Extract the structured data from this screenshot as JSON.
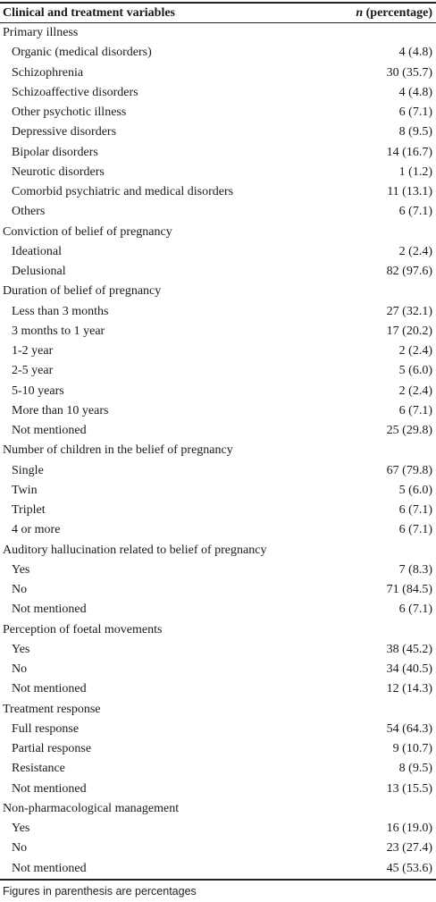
{
  "header": {
    "variable_label": "Clinical and treatment variables",
    "n_italic": "n",
    "n_rest": " (percentage)"
  },
  "sections": [
    {
      "title": "Primary illness",
      "items": [
        {
          "label": "Organic (medical disorders)",
          "value": "4 (4.8)"
        },
        {
          "label": "Schizophrenia",
          "value": "30 (35.7)"
        },
        {
          "label": "Schizoaffective disorders",
          "value": "4 (4.8)"
        },
        {
          "label": "Other psychotic illness",
          "value": "6 (7.1)"
        },
        {
          "label": "Depressive disorders",
          "value": "8 (9.5)"
        },
        {
          "label": "Bipolar disorders",
          "value": "14 (16.7)"
        },
        {
          "label": "Neurotic disorders",
          "value": "1 (1.2)"
        },
        {
          "label": "Comorbid psychiatric and medical disorders",
          "value": "11 (13.1)"
        },
        {
          "label": "Others",
          "value": "6 (7.1)"
        }
      ]
    },
    {
      "title": "Conviction of belief of pregnancy",
      "items": [
        {
          "label": "Ideational",
          "value": "2 (2.4)"
        },
        {
          "label": "Delusional",
          "value": "82 (97.6)"
        }
      ]
    },
    {
      "title": "Duration of belief of pregnancy",
      "items": [
        {
          "label": "Less than 3 months",
          "value": "27 (32.1)"
        },
        {
          "label": "3 months to 1 year",
          "value": "17 (20.2)"
        },
        {
          "label": "1-2 year",
          "value": "2 (2.4)"
        },
        {
          "label": "2-5 year",
          "value": "5 (6.0)"
        },
        {
          "label": "5-10 years",
          "value": "2 (2.4)"
        },
        {
          "label": "More than 10 years",
          "value": "6 (7.1)"
        },
        {
          "label": "Not mentioned",
          "value": "25 (29.8)"
        }
      ]
    },
    {
      "title": "Number of children in the belief of pregnancy",
      "items": [
        {
          "label": "Single",
          "value": "67 (79.8)"
        },
        {
          "label": "Twin",
          "value": "5 (6.0)"
        },
        {
          "label": "Triplet",
          "value": "6 (7.1)"
        },
        {
          "label": "4 or more",
          "value": "6 (7.1)"
        }
      ]
    },
    {
      "title": "Auditory hallucination related to belief of pregnancy",
      "items": [
        {
          "label": "Yes",
          "value": "7 (8.3)"
        },
        {
          "label": "No",
          "value": "71 (84.5)"
        },
        {
          "label": "Not mentioned",
          "value": "6 (7.1)"
        }
      ]
    },
    {
      "title": "Perception of foetal movements",
      "items": [
        {
          "label": "Yes",
          "value": "38 (45.2)"
        },
        {
          "label": "No",
          "value": "34 (40.5)"
        },
        {
          "label": "Not mentioned",
          "value": "12 (14.3)"
        }
      ]
    },
    {
      "title": "Treatment response",
      "items": [
        {
          "label": "Full response",
          "value": "54 (64.3)"
        },
        {
          "label": "Partial response",
          "value": "9 (10.7)"
        },
        {
          "label": "Resistance",
          "value": "8 (9.5)"
        },
        {
          "label": "Not mentioned",
          "value": "13 (15.5)"
        }
      ]
    },
    {
      "title": "Non-pharmacological management",
      "items": [
        {
          "label": "Yes",
          "value": "16 (19.0)"
        },
        {
          "label": "No",
          "value": "23 (27.4)"
        },
        {
          "label": "Not mentioned",
          "value": "45 (53.6)"
        }
      ]
    }
  ],
  "footnote": "Figures in parenthesis are percentages"
}
